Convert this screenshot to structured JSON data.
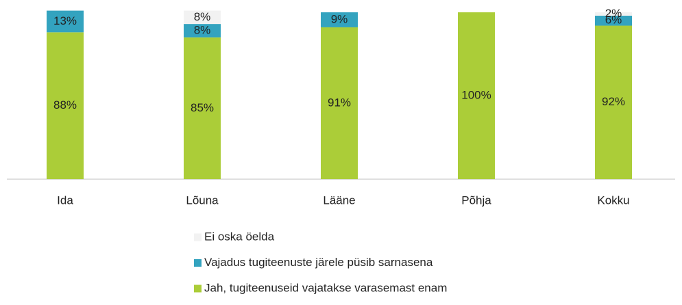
{
  "chart_data": {
    "type": "stacked_bar",
    "categories": [
      "Ida",
      "Lõuna",
      "Lääne",
      "Põhja",
      "Kokku"
    ],
    "series": [
      {
        "name": "Jah, tugiteenuseid vajatakse varasemast enam",
        "color": "#abcd38",
        "values": [
          88,
          85,
          91,
          100,
          92
        ],
        "value_labels": [
          "88%",
          "85%",
          "91%",
          "100%",
          "92%"
        ]
      },
      {
        "name": "Vajadus tugiteenuste järele püsib sarnasena",
        "color": "#33a3bf",
        "values": [
          13,
          8,
          9,
          null,
          6
        ],
        "value_labels": [
          "13%",
          "8%",
          "9%",
          null,
          "6%"
        ]
      },
      {
        "name": "Ei oska öelda",
        "color": "#f2f2f2",
        "values": [
          null,
          8,
          null,
          null,
          2
        ],
        "value_labels": [
          null,
          "8%",
          null,
          null,
          "2%"
        ]
      }
    ],
    "ylim": [
      0,
      100
    ]
  }
}
